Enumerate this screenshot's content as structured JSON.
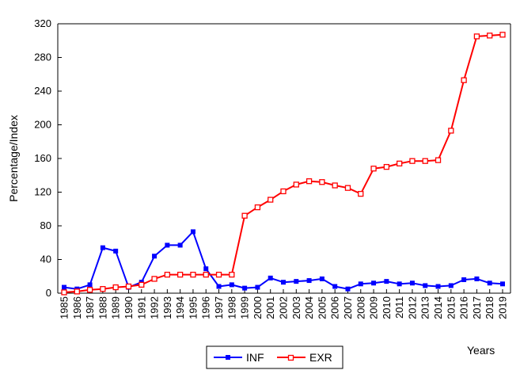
{
  "chart_data": {
    "type": "line",
    "title": "",
    "ylabel": "Percentage/Index",
    "xlabel": "Years",
    "ylim": [
      0,
      320
    ],
    "yticks": [
      0,
      40,
      80,
      120,
      160,
      200,
      240,
      280,
      320
    ],
    "grid": false,
    "legend_position": "bottom-center",
    "categories": [
      "1985",
      "1986",
      "1987",
      "1988",
      "1989",
      "1990",
      "1991",
      "1992",
      "1993",
      "1994",
      "1995",
      "1996",
      "1997",
      "1998",
      "1999",
      "2000",
      "2001",
      "2002",
      "2003",
      "2004",
      "2005",
      "2006",
      "2007",
      "2008",
      "2009",
      "2010",
      "2011",
      "2012",
      "2013",
      "2014",
      "2015",
      "2016",
      "2017",
      "2018",
      "2019"
    ],
    "series": [
      {
        "name": "INF",
        "color": "#0000ff",
        "marker": "filled-square",
        "values": [
          7,
          5,
          10,
          54,
          50,
          7,
          13,
          44,
          57,
          57,
          73,
          29,
          8,
          10,
          6,
          7,
          18,
          13,
          14,
          15,
          17,
          8,
          5,
          11,
          12,
          14,
          11,
          12,
          9,
          8,
          9,
          16,
          17,
          12,
          11
        ]
      },
      {
        "name": "EXR",
        "color": "#ff0000",
        "marker": "hollow-square",
        "values": [
          1,
          2,
          4,
          5,
          7,
          8,
          10,
          17,
          22,
          22,
          22,
          22,
          22,
          22,
          92,
          102,
          111,
          121,
          129,
          133,
          132,
          128,
          125,
          118,
          148,
          150,
          154,
          157,
          157,
          158,
          193,
          253,
          305,
          306,
          307
        ]
      }
    ]
  }
}
